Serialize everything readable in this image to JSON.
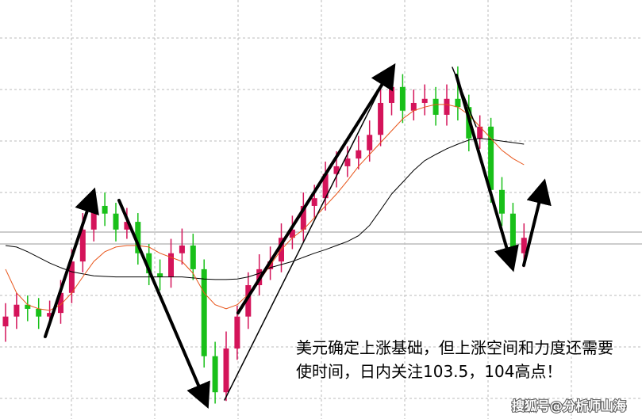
{
  "chart_data": {
    "type": "candlestick",
    "ylim": [
      97.6,
      105.74
    ],
    "up_color": "#d4145a",
    "down_color": "#19c019",
    "open": [
      99.4,
      99.59,
      99.82,
      99.74,
      99.59,
      99.66,
      100.05,
      100.66,
      101.28,
      101.74,
      101.59,
      101.28,
      101.43,
      100.82,
      100.43,
      100.36,
      100.82,
      100.97,
      100.51,
      98.82,
      98.12,
      98.97,
      99.59,
      100.2,
      100.51,
      100.66,
      101.12,
      101.28,
      101.74,
      101.89,
      102.36,
      102.51,
      102.66,
      102.82,
      103.12,
      103.74,
      104.05,
      103.59,
      103.74,
      103.82,
      103.51,
      103.82,
      103.66,
      103.05,
      103.28,
      102.05,
      101.59,
      100.82
    ],
    "high": [
      99.85,
      100.05,
      100.0,
      99.95,
      99.9,
      100.3,
      100.9,
      101.6,
      102.0,
      102.0,
      101.8,
      101.7,
      101.6,
      101.0,
      100.7,
      101.1,
      101.3,
      101.2,
      100.7,
      99.1,
      99.3,
      99.8,
      100.45,
      100.8,
      100.95,
      101.4,
      101.55,
      102.0,
      102.15,
      102.6,
      102.8,
      102.9,
      103.1,
      103.4,
      104.0,
      104.4,
      104.3,
      104.0,
      104.1,
      104.05,
      104.1,
      104.45,
      103.9,
      103.5,
      103.45,
      102.3,
      101.8,
      101.4
    ],
    "low": [
      99.1,
      99.35,
      99.5,
      99.35,
      99.4,
      99.45,
      99.85,
      100.45,
      101.05,
      101.35,
      101.05,
      101.1,
      100.6,
      100.2,
      100.1,
      100.15,
      100.6,
      100.3,
      98.6,
      97.9,
      97.95,
      98.75,
      99.35,
      100.0,
      100.3,
      100.45,
      100.9,
      101.05,
      101.5,
      101.65,
      102.1,
      102.3,
      102.45,
      102.6,
      102.9,
      103.5,
      103.35,
      103.4,
      103.5,
      103.3,
      103.3,
      103.4,
      102.8,
      102.85,
      101.8,
      101.35,
      100.6,
      100.55
    ],
    "close": [
      99.59,
      99.82,
      99.74,
      99.59,
      99.66,
      100.05,
      100.66,
      101.28,
      101.74,
      101.59,
      101.28,
      101.43,
      100.82,
      100.43,
      100.36,
      100.82,
      100.97,
      100.51,
      98.82,
      98.12,
      98.97,
      99.59,
      100.2,
      100.51,
      100.66,
      101.12,
      101.28,
      101.74,
      101.89,
      102.36,
      102.51,
      102.66,
      102.82,
      103.12,
      103.74,
      104.05,
      103.59,
      103.74,
      103.82,
      103.51,
      103.82,
      103.66,
      103.05,
      103.28,
      102.05,
      101.59,
      100.82,
      101.12
    ],
    "series": [
      {
        "color": "#000000",
        "values": [
          100.97,
          100.94,
          100.85,
          100.74,
          100.63,
          100.54,
          100.46,
          100.42,
          100.38,
          100.37,
          100.36,
          100.36,
          100.36,
          100.36,
          100.36,
          100.36,
          100.36,
          100.34,
          100.32,
          100.31,
          100.31,
          100.32,
          100.36,
          100.43,
          100.54,
          100.6,
          100.66,
          100.74,
          100.82,
          100.89,
          100.97,
          101.05,
          101.16,
          101.36,
          101.66,
          101.97,
          102.2,
          102.43,
          102.62,
          102.74,
          102.85,
          102.94,
          103.02,
          103.05,
          103.03,
          103.0,
          102.97,
          102.94
        ]
      },
      {
        "color": "#e8551a",
        "values": [
          100.51,
          100.05,
          99.82,
          99.74,
          99.71,
          99.82,
          100.05,
          100.36,
          100.66,
          100.85,
          100.94,
          100.97,
          100.97,
          100.94,
          100.82,
          100.74,
          100.66,
          100.43,
          100.05,
          99.82,
          99.74,
          99.82,
          100.02,
          100.28,
          100.59,
          100.89,
          101.12,
          101.28,
          101.51,
          101.74,
          101.97,
          102.23,
          102.51,
          102.74,
          102.97,
          103.2,
          103.43,
          103.59,
          103.66,
          103.71,
          103.71,
          103.66,
          103.51,
          103.28,
          103.05,
          102.82,
          102.66,
          102.54
        ]
      }
    ],
    "annotations": [
      "美元确定上涨基础，但上涨空间和力度还需要",
      "使时间，日内关注103.5，104高点！"
    ],
    "watermark": "搜狐号@分析师山海"
  }
}
